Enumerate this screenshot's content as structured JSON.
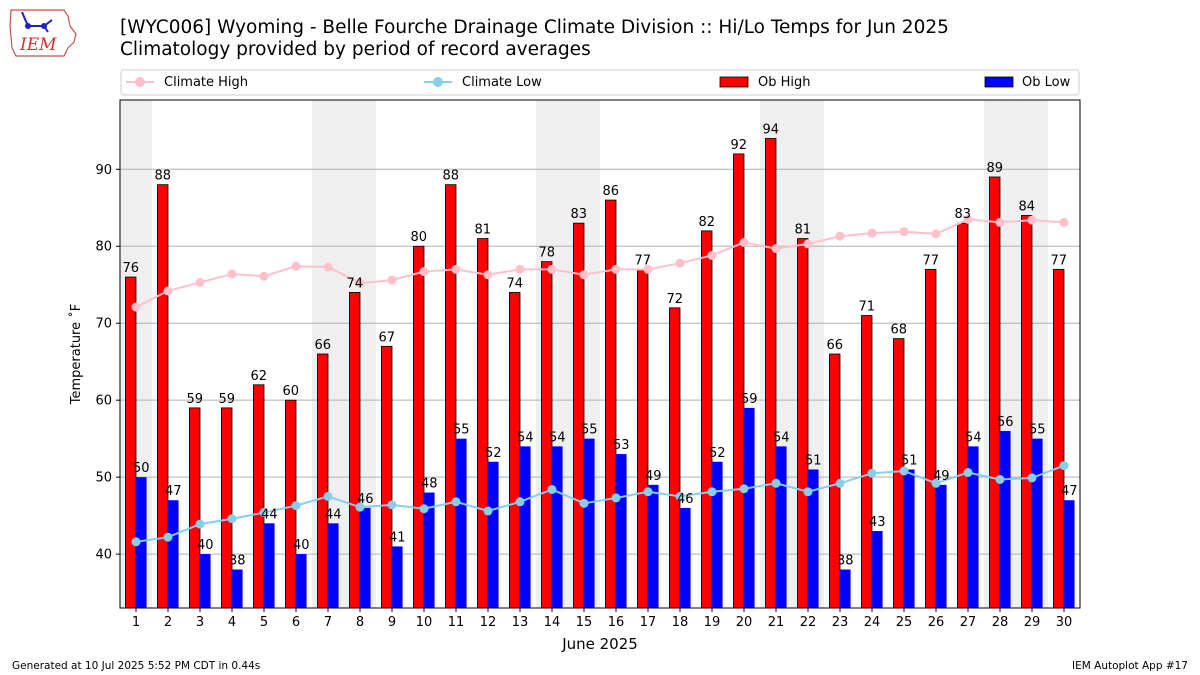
{
  "logo": {
    "text": "IEM",
    "icon": "iem-iowa-logo-icon"
  },
  "header": {
    "title": "[WYC006] Wyoming - Belle Fourche Drainage Climate Division :: Hi/Lo Temps for Jun 2025",
    "subtitle": "Climatology provided by period of record averages"
  },
  "footer": {
    "generated": "Generated at 10 Jul 2025 5:52 PM CDT in 0.44s",
    "app": "IEM Autoplot App #17"
  },
  "colors": {
    "ob_high": "#ff0000",
    "ob_low": "#0000ff",
    "climate_high": "#ffc0cb",
    "climate_low": "#87ceeb",
    "weekend_shade": "#efefef",
    "grid": "#b0b0b0"
  },
  "chart_data": {
    "type": "bar",
    "title": "[WYC006] Wyoming - Belle Fourche Drainage Climate Division :: Hi/Lo Temps for Jun 2025",
    "subtitle": "Climatology provided by period of record averages",
    "xlabel": "June 2025",
    "ylabel": "Temperature $^\\circ$F",
    "ylabel_display": "Temperature ˚F",
    "categories": [
      "1",
      "2",
      "3",
      "4",
      "5",
      "6",
      "7",
      "8",
      "9",
      "10",
      "11",
      "12",
      "13",
      "14",
      "15",
      "16",
      "17",
      "18",
      "19",
      "20",
      "21",
      "22",
      "23",
      "24",
      "25",
      "26",
      "27",
      "28",
      "29",
      "30"
    ],
    "ylim": [
      33,
      99
    ],
    "yticks": [
      40,
      50,
      60,
      70,
      80,
      90
    ],
    "grid": true,
    "legend_placement": "top, spanning plot width",
    "shaded_days": [
      1,
      7,
      8,
      14,
      15,
      21,
      22,
      28,
      29
    ],
    "series": [
      {
        "name": "Climate High",
        "kind": "line",
        "color": "#ffc0cb",
        "values": [
          72.1,
          74.2,
          75.3,
          76.4,
          76.1,
          77.4,
          77.3,
          75.2,
          75.6,
          76.7,
          77.0,
          76.3,
          77.0,
          77.0,
          76.3,
          77.0,
          77.0,
          77.8,
          78.8,
          80.5,
          79.7,
          80.3,
          81.3,
          81.7,
          81.9,
          81.6,
          83.5,
          83.1,
          83.4,
          83.1
        ]
      },
      {
        "name": "Climate Low",
        "kind": "line",
        "color": "#87ceeb",
        "values": [
          41.6,
          42.2,
          43.9,
          44.6,
          45.4,
          46.3,
          47.5,
          46.1,
          46.4,
          45.9,
          46.8,
          45.6,
          46.8,
          48.4,
          46.6,
          47.3,
          48.1,
          47.5,
          48.1,
          48.5,
          49.2,
          48.1,
          49.2,
          50.5,
          50.8,
          49.2,
          50.6,
          49.7,
          49.9,
          51.5
        ]
      },
      {
        "name": "Ob High",
        "kind": "bar",
        "color": "#ff0000",
        "values": [
          76,
          88,
          59,
          59,
          62,
          60,
          66,
          74,
          67,
          80,
          88,
          81,
          74,
          78,
          83,
          86,
          77,
          72,
          82,
          92,
          94,
          81,
          66,
          71,
          68,
          77,
          83,
          89,
          84,
          77
        ]
      },
      {
        "name": "Ob Low",
        "kind": "bar",
        "color": "#0000ff",
        "values": [
          50,
          47,
          40,
          38,
          44,
          40,
          44,
          46,
          41,
          48,
          55,
          52,
          54,
          54,
          55,
          53,
          49,
          46,
          52,
          59,
          54,
          51,
          38,
          43,
          51,
          49,
          54,
          56,
          55,
          47
        ]
      }
    ]
  }
}
